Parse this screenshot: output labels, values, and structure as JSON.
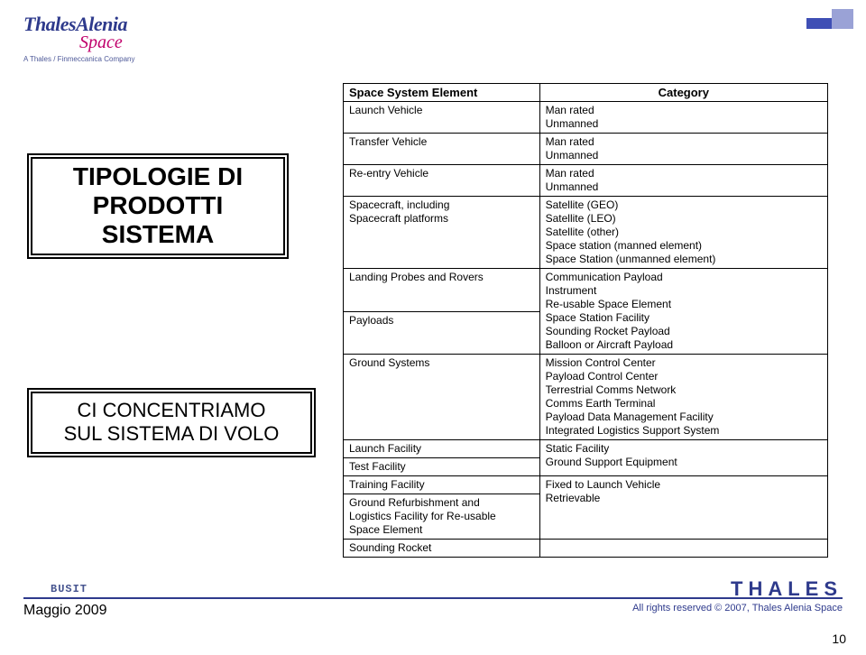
{
  "logo": {
    "line1a": "Thales",
    "line1b": "Alenia",
    "line2": "Space",
    "sub": "A Thales / Finmeccanica Company"
  },
  "accent_colors": {
    "dark": "#3f4fb5",
    "light": "#9aa2d6"
  },
  "left_title": {
    "l1": "TIPOLOGIE DI",
    "l2": "PRODOTTI",
    "l3": "SISTEMA"
  },
  "left_focus": {
    "l1": "CI CONCENTRIAMO",
    "l2": "SUL SISTEMA DI VOLO"
  },
  "table": {
    "headers": {
      "element": "Space System Element",
      "category": "Category"
    },
    "rows": [
      {
        "element": "Launch Vehicle",
        "categories": [
          "Man rated",
          "Unmanned"
        ]
      },
      {
        "element": "Transfer Vehicle",
        "categories": [
          "Man rated",
          "Unmanned"
        ]
      },
      {
        "element": "Re-entry Vehicle",
        "categories": [
          "Man rated",
          "Unmanned"
        ]
      },
      {
        "element": "Spacecraft, including\nSpacecraft platforms",
        "categories": [
          "Satellite (GEO)",
          "Satellite (LEO)",
          "Satellite (other)",
          "Space station (manned element)",
          "Space Station (unmanned element)"
        ]
      },
      {
        "element": "Landing Probes and Rovers",
        "categories": []
      },
      {
        "element": "Payloads",
        "categories": [
          "Communication Payload",
          "Instrument",
          "Re-usable Space Element",
          "Space Station Facility",
          "Sounding Rocket Payload",
          "Balloon or Aircraft Payload"
        ]
      },
      {
        "element": "Ground Systems",
        "categories": [
          "Mission Control Center",
          "Payload Control Center",
          "Terrestrial Comms Network",
          "Comms Earth Terminal",
          "Payload Data Management Facility",
          "Integrated Logistics Support System"
        ]
      },
      {
        "element": "Launch Facility",
        "categories": []
      },
      {
        "element": "Test Facility",
        "categories": [
          "Static Facility",
          "Ground Support Equipment"
        ]
      },
      {
        "element": "Training Facility",
        "categories": []
      },
      {
        "element": "Ground Refurbishment and\nLogistics Facility for Re-usable\nSpace Element",
        "categories": [
          "Fixed to Launch Vehicle",
          "Retrievable"
        ]
      },
      {
        "element": "Sounding Rocket",
        "categories": []
      }
    ]
  },
  "footer": {
    "busit": "BUSIT",
    "date": "Maggio 2009",
    "brand": "THALES",
    "copyright": "All rights reserved © 2007, Thales Alenia Space",
    "page": "10"
  },
  "colors": {
    "brand_blue": "#2e3a8c",
    "brand_magenta": "#c0006b",
    "text": "#000000",
    "bg": "#ffffff"
  }
}
